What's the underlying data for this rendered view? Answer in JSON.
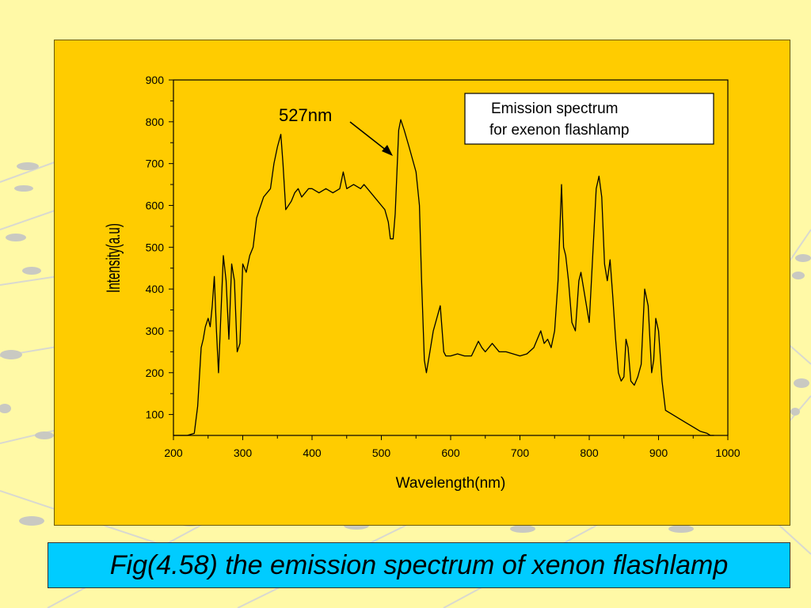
{
  "caption": "Fig(4.58) the emission spectrum of xenon flashlamp",
  "colors": {
    "page_background": "#FFF9A6",
    "chart_background": "#FFCC00",
    "caption_background": "#00CCFF",
    "line": "#000000"
  },
  "chart_data": {
    "type": "line",
    "title": "",
    "xlabel": "Wavelength(nm)",
    "ylabel": "Intensity(a.u)",
    "xlim": [
      200,
      1000
    ],
    "ylim": [
      50,
      900
    ],
    "x_ticks": [
      200,
      300,
      400,
      500,
      600,
      700,
      800,
      900,
      1000
    ],
    "y_ticks": [
      100,
      200,
      300,
      400,
      500,
      600,
      700,
      800,
      900
    ],
    "grid": false,
    "legend": {
      "position": "top-right",
      "lines": [
        "Emission spectrum",
        "for exenon flashlamp"
      ]
    },
    "annotations": [
      {
        "text": "527nm",
        "x": 527,
        "y": 805
      }
    ],
    "series": [
      {
        "x": [
          200,
          220,
          230,
          235,
          240,
          243,
          246,
          250,
          253,
          256,
          259,
          262,
          265,
          268,
          272,
          276,
          280,
          284,
          288,
          292,
          296,
          300,
          305,
          310,
          315,
          320,
          330,
          340,
          345,
          350,
          355,
          358,
          362,
          366,
          370,
          375,
          380,
          385,
          390,
          395,
          400,
          410,
          420,
          430,
          440,
          445,
          450,
          460,
          470,
          475,
          480,
          490,
          500,
          505,
          510,
          513,
          517,
          520,
          525,
          528,
          533,
          540,
          550,
          555,
          558,
          562,
          565,
          570,
          575,
          580,
          585,
          590,
          593,
          596,
          598,
          600,
          610,
          620,
          630,
          640,
          645,
          650,
          660,
          670,
          680,
          690,
          700,
          710,
          720,
          725,
          730,
          735,
          740,
          745,
          750,
          755,
          760,
          763,
          766,
          770,
          775,
          780,
          785,
          788,
          792,
          796,
          800,
          805,
          810,
          814,
          818,
          822,
          826,
          830,
          834,
          838,
          842,
          846,
          850,
          853,
          856,
          860,
          865,
          870,
          875,
          880,
          885,
          890,
          893,
          896,
          900,
          905,
          910,
          920,
          930,
          940,
          950,
          960,
          970,
          975,
          980
        ],
        "y": [
          50,
          50,
          55,
          120,
          260,
          280,
          310,
          330,
          310,
          360,
          430,
          300,
          200,
          320,
          480,
          420,
          280,
          460,
          420,
          250,
          270,
          460,
          440,
          480,
          500,
          570,
          620,
          640,
          700,
          740,
          770,
          700,
          590,
          600,
          610,
          630,
          640,
          620,
          630,
          640,
          640,
          630,
          640,
          630,
          640,
          680,
          640,
          650,
          640,
          650,
          640,
          620,
          600,
          590,
          560,
          520,
          520,
          580,
          780,
          805,
          780,
          740,
          680,
          600,
          420,
          230,
          200,
          250,
          300,
          330,
          360,
          250,
          240,
          240,
          240,
          240,
          245,
          240,
          240,
          275,
          260,
          250,
          270,
          250,
          250,
          245,
          240,
          245,
          260,
          280,
          300,
          270,
          280,
          260,
          300,
          420,
          650,
          500,
          480,
          420,
          320,
          300,
          420,
          440,
          400,
          360,
          320,
          480,
          640,
          670,
          620,
          460,
          420,
          470,
          380,
          280,
          200,
          180,
          190,
          280,
          260,
          180,
          170,
          190,
          220,
          400,
          360,
          200,
          230,
          330,
          300,
          180,
          110,
          100,
          90,
          80,
          70,
          60,
          55,
          50,
          50
        ]
      }
    ]
  }
}
